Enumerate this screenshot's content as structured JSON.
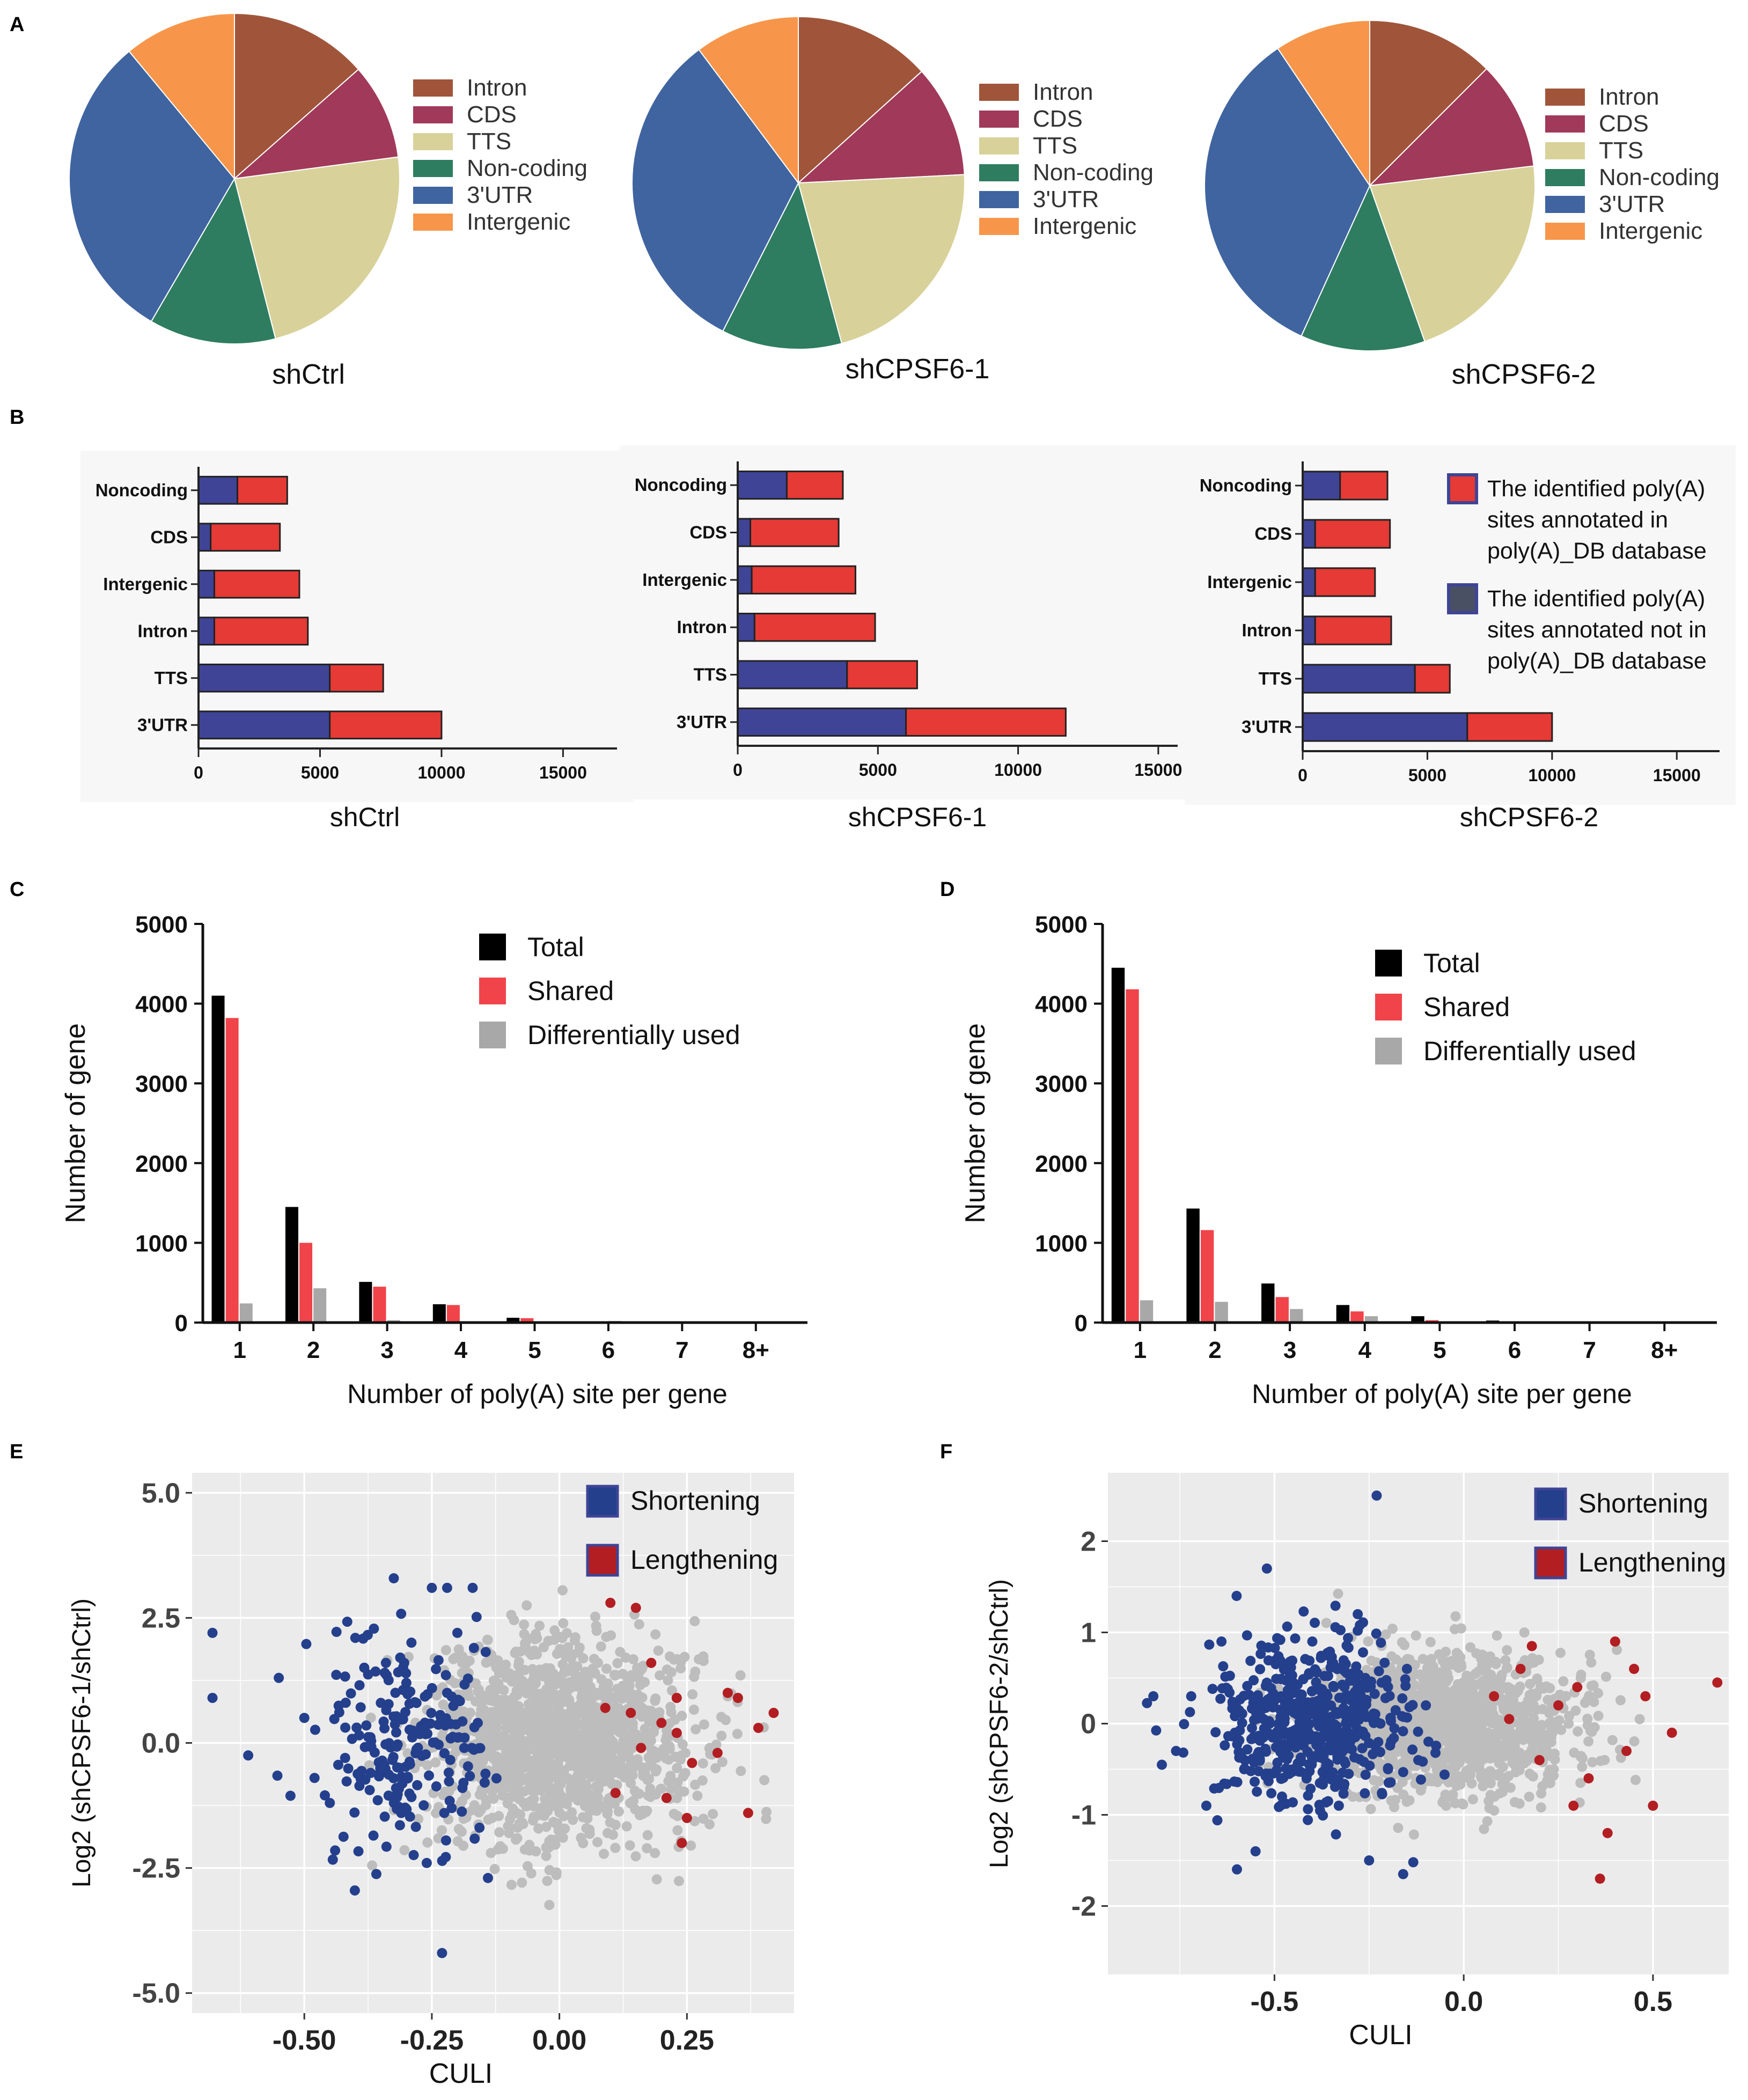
{
  "colors": {
    "intron": "#A0553A",
    "cds": "#A0395A",
    "tts": "#D8D29A",
    "noncoding": "#2E7D60",
    "utr3": "#3F64A0",
    "intergenic": "#F7964A",
    "annotated": "#E53A35",
    "not_annotated": "#3F4496",
    "total": "#000000",
    "shared": "#F0444A",
    "diff": "#A8A8A8",
    "shortening": "#243F8C",
    "lengthening": "#B21E22",
    "other_point": "#BDBDBD",
    "scatter_bg": "#EBEBEB"
  },
  "chart_data": [
    {
      "panel": "A",
      "type": "pie",
      "title": "shCtrl",
      "labels": [
        "Intron",
        "CDS",
        "TTS",
        "Non-coding",
        "3'UTR",
        "Intergenic"
      ],
      "values": [
        13.5,
        9.4,
        23.1,
        12.4,
        30.6,
        11.0
      ],
      "legend": "right"
    },
    {
      "panel": "A",
      "type": "pie",
      "title": "shCPSF6-1",
      "labels": [
        "Intron",
        "CDS",
        "TTS",
        "Non-coding",
        "3'UTR",
        "Intergenic"
      ],
      "values": [
        13.3,
        10.9,
        21.6,
        11.7,
        32.3,
        10.2
      ],
      "legend": "right"
    },
    {
      "panel": "A",
      "type": "pie",
      "title": "shCPSF6-2",
      "labels": [
        "Intron",
        "CDS",
        "TTS",
        "Non-coding",
        "3'UTR",
        "Intergenic"
      ],
      "values": [
        12.5,
        10.6,
        21.5,
        12.2,
        33.8,
        9.4
      ],
      "legend": "right"
    },
    {
      "panel": "B",
      "type": "bar",
      "orientation": "horizontal",
      "stacked": true,
      "title": "shCtrl",
      "categories": [
        "Noncoding",
        "CDS",
        "Intergenic",
        "Intron",
        "TTS",
        "3'UTR"
      ],
      "series": [
        {
          "name": "The identified poly(A) sites annotated not in poly(A)_DB database",
          "values": [
            1600,
            500,
            650,
            650,
            5400,
            5400
          ]
        },
        {
          "name": "The identified poly(A) sites annotated in poly(A)_DB database",
          "values": [
            2050,
            2850,
            3500,
            3850,
            2200,
            4600
          ]
        }
      ],
      "xlim": [
        0,
        17000
      ],
      "xticks": [
        "0",
        "5000",
        "10000",
        "15000"
      ]
    },
    {
      "panel": "B",
      "type": "bar",
      "orientation": "horizontal",
      "stacked": true,
      "title": "shCPSF6-1",
      "categories": [
        "Noncoding",
        "CDS",
        "Intergenic",
        "Intron",
        "TTS",
        "3'UTR"
      ],
      "series": [
        {
          "name": "The identified poly(A) sites annotated not in poly(A)_DB database",
          "values": [
            1750,
            450,
            500,
            600,
            3900,
            6000
          ]
        },
        {
          "name": "The identified poly(A) sites annotated in poly(A)_DB database",
          "values": [
            2000,
            3150,
            3700,
            4300,
            2500,
            5700
          ]
        }
      ],
      "xlim": [
        0,
        15500
      ],
      "xticks": [
        "0",
        "5000",
        "10000",
        "15000"
      ]
    },
    {
      "panel": "B",
      "type": "bar",
      "orientation": "horizontal",
      "stacked": true,
      "title": "shCPSF6-2",
      "categories": [
        "Noncoding",
        "CDS",
        "Intergenic",
        "Intron",
        "TTS",
        "3'UTR"
      ],
      "series": [
        {
          "name": "The identified poly(A) sites annotated not in poly(A)_DB database",
          "values": [
            1500,
            500,
            500,
            500,
            4500,
            6600
          ]
        },
        {
          "name": "The identified poly(A) sites annotated in poly(A)_DB database",
          "values": [
            1900,
            3000,
            2400,
            3050,
            1400,
            3400
          ]
        }
      ],
      "xlim": [
        0,
        16500
      ],
      "xticks": [
        "0",
        "5000",
        "10000",
        "15000"
      ],
      "legend": [
        {
          "key": "in",
          "lines": [
            "The identified poly(A)",
            "sites annotated in",
            "poly(A)_DB database"
          ]
        },
        {
          "key": "notin",
          "lines": [
            "The identified poly(A)",
            "sites annotated not in",
            "poly(A)_DB database"
          ]
        }
      ]
    },
    {
      "panel": "C",
      "type": "bar",
      "grouped": true,
      "categories": [
        "1",
        "2",
        "3",
        "4",
        "5",
        "6",
        "7",
        "8+"
      ],
      "series": [
        {
          "name": "Total",
          "values": [
            4100,
            1450,
            510,
            230,
            60,
            15,
            5,
            3
          ]
        },
        {
          "name": "Shared",
          "values": [
            3820,
            1000,
            450,
            220,
            55,
            12,
            4,
            2
          ]
        },
        {
          "name": "Differentially used",
          "values": [
            240,
            430,
            30,
            10,
            5,
            20,
            2,
            1
          ]
        }
      ],
      "ylim": [
        0,
        5000
      ],
      "yticks": [
        "0",
        "1000",
        "2000",
        "3000",
        "4000",
        "5000"
      ],
      "xlabel": "Number of poly(A) site per gene",
      "ylabel": "Number of gene"
    },
    {
      "panel": "D",
      "type": "bar",
      "grouped": true,
      "categories": [
        "1",
        "2",
        "3",
        "4",
        "5",
        "6",
        "7",
        "8+"
      ],
      "series": [
        {
          "name": "Total",
          "values": [
            4450,
            1430,
            490,
            220,
            80,
            25,
            10,
            5
          ]
        },
        {
          "name": "Shared",
          "values": [
            4180,
            1160,
            320,
            140,
            30,
            15,
            5,
            3
          ]
        },
        {
          "name": "Differentially used",
          "values": [
            280,
            260,
            170,
            80,
            15,
            8,
            3,
            2
          ]
        }
      ],
      "ylim": [
        0,
        5000
      ],
      "yticks": [
        "0",
        "1000",
        "2000",
        "3000",
        "4000",
        "5000"
      ],
      "xlabel": "Number of poly(A) site per gene",
      "ylabel": "Number of gene"
    },
    {
      "panel": "E",
      "type": "scatter",
      "xlabel": "CULI",
      "ylabel": "Log2 (shCPSF6-1/shCtrl)",
      "xlim": [
        -0.72,
        0.46
      ],
      "ylim": [
        -5.4,
        5.4
      ],
      "xticks": [
        -0.5,
        -0.25,
        0.0,
        0.25
      ],
      "yticks": [
        -5.0,
        -2.5,
        0.0,
        2.5,
        5.0
      ],
      "xtick_labels": [
        "-0.50",
        "-0.25",
        "0.00",
        "0.25"
      ],
      "ytick_labels": [
        "-5.0",
        "-2.5",
        "0.0",
        "2.5",
        "5.0"
      ],
      "legend": [
        "Shortening",
        "Lengthening"
      ],
      "highlighted_points": {
        "Shortening": [
          [
            -0.68,
            2.2
          ],
          [
            -0.68,
            0.9
          ],
          [
            -0.23,
            -4.2
          ],
          [
            -0.25,
            3.1
          ],
          [
            -0.22,
            3.1
          ],
          [
            -0.17,
            3.1
          ],
          [
            -0.61,
            -0.25
          ],
          [
            -0.55,
            1.3
          ],
          [
            -0.5,
            0.5
          ],
          [
            -0.45,
            -1.2
          ],
          [
            -0.4,
            2.1
          ],
          [
            -0.37,
            -0.6
          ],
          [
            -0.34,
            1.6
          ],
          [
            -0.31,
            -1.4
          ],
          [
            -0.28,
            0.2
          ],
          [
            -0.26,
            -2.4
          ],
          [
            -0.22,
            1.0
          ],
          [
            -0.19,
            -0.9
          ],
          [
            -0.16,
            0.4
          ],
          [
            -0.14,
            -2.7
          ],
          [
            -0.35,
            0.8
          ],
          [
            -0.42,
            -0.3
          ],
          [
            -0.3,
            1.2
          ],
          [
            -0.48,
            -0.7
          ],
          [
            -0.2,
            2.2
          ]
        ],
        "Lengthening": [
          [
            0.1,
            2.8
          ],
          [
            0.15,
            2.7
          ],
          [
            0.18,
            1.6
          ],
          [
            0.09,
            0.7
          ],
          [
            0.14,
            0.6
          ],
          [
            0.2,
            0.4
          ],
          [
            0.23,
            0.2
          ],
          [
            0.33,
            1.0
          ],
          [
            0.35,
            0.9
          ],
          [
            0.39,
            0.3
          ],
          [
            0.42,
            0.6
          ],
          [
            0.25,
            -1.5
          ],
          [
            0.37,
            -1.4
          ],
          [
            0.21,
            -1.1
          ],
          [
            0.11,
            -1.0
          ],
          [
            0.26,
            -0.4
          ],
          [
            0.24,
            -2.0
          ],
          [
            0.23,
            0.9
          ],
          [
            0.31,
            -0.2
          ],
          [
            0.16,
            -0.1
          ]
        ]
      },
      "notes": "Dense gray cloud of non-significant genes centered near (0.0, 0.0)"
    },
    {
      "panel": "F",
      "type": "scatter",
      "xlabel": "CULI",
      "ylabel": "Log2 (shCPSF6-2/shCtrl)",
      "xlim": [
        -0.94,
        0.7
      ],
      "ylim": [
        -2.75,
        2.75
      ],
      "xticks": [
        -0.5,
        0.0,
        0.5
      ],
      "yticks": [
        -2,
        -1,
        0,
        1,
        2
      ],
      "xtick_labels": [
        "-0.5",
        "0.0",
        "0.5"
      ],
      "ytick_labels": [
        "-2",
        "-1",
        "0",
        "1",
        "2"
      ],
      "legend": [
        "Shortening",
        "Lengthening"
      ],
      "highlighted_points": {
        "Shortening": [
          [
            -0.23,
            2.5
          ],
          [
            -0.6,
            1.4
          ],
          [
            -0.52,
            1.7
          ],
          [
            -0.55,
            -1.4
          ],
          [
            -0.72,
            0.3
          ],
          [
            -0.82,
            0.3
          ],
          [
            -0.76,
            -0.3
          ],
          [
            -0.48,
            -0.8
          ],
          [
            -0.4,
            0.9
          ],
          [
            -0.33,
            -0.9
          ],
          [
            -0.28,
            1.2
          ],
          [
            -0.2,
            -0.5
          ],
          [
            -0.15,
            0.6
          ],
          [
            -0.12,
            -0.4
          ],
          [
            -0.25,
            -1.5
          ],
          [
            -0.16,
            -1.65
          ],
          [
            -0.64,
            0.9
          ],
          [
            -0.58,
            -0.5
          ],
          [
            -0.44,
            0.1
          ],
          [
            -0.36,
            0.3
          ],
          [
            -0.3,
            -0.2
          ],
          [
            -0.26,
            0.5
          ],
          [
            -0.22,
            0.0
          ],
          [
            -0.1,
            0.2
          ],
          [
            -0.68,
            -0.9
          ]
        ],
        "Lengthening": [
          [
            0.67,
            0.45
          ],
          [
            0.36,
            -1.7
          ],
          [
            0.5,
            -0.9
          ],
          [
            0.55,
            -0.1
          ],
          [
            0.45,
            0.6
          ],
          [
            0.4,
            0.9
          ],
          [
            0.3,
            0.4
          ],
          [
            0.25,
            0.2
          ],
          [
            0.2,
            -0.4
          ],
          [
            0.15,
            0.6
          ],
          [
            0.12,
            0.05
          ],
          [
            0.18,
            0.85
          ],
          [
            0.33,
            -0.6
          ],
          [
            0.43,
            -0.3
          ],
          [
            0.48,
            0.3
          ],
          [
            0.38,
            -1.2
          ],
          [
            0.29,
            -0.9
          ],
          [
            0.08,
            0.3
          ]
        ]
      },
      "notes": "Dense gray cloud of non-significant genes centered near (-0.05, 0.0)"
    }
  ],
  "panel_labels": {
    "a": "A",
    "b": "B",
    "c": "C",
    "d": "D",
    "e": "E",
    "f": "F"
  },
  "legend_ab": {
    "annotated": "The identified poly(A) sites annotated in poly(A)_DB database",
    "not_annotated": "The identified poly(A) sites annotated not in poly(A)_DB database"
  }
}
